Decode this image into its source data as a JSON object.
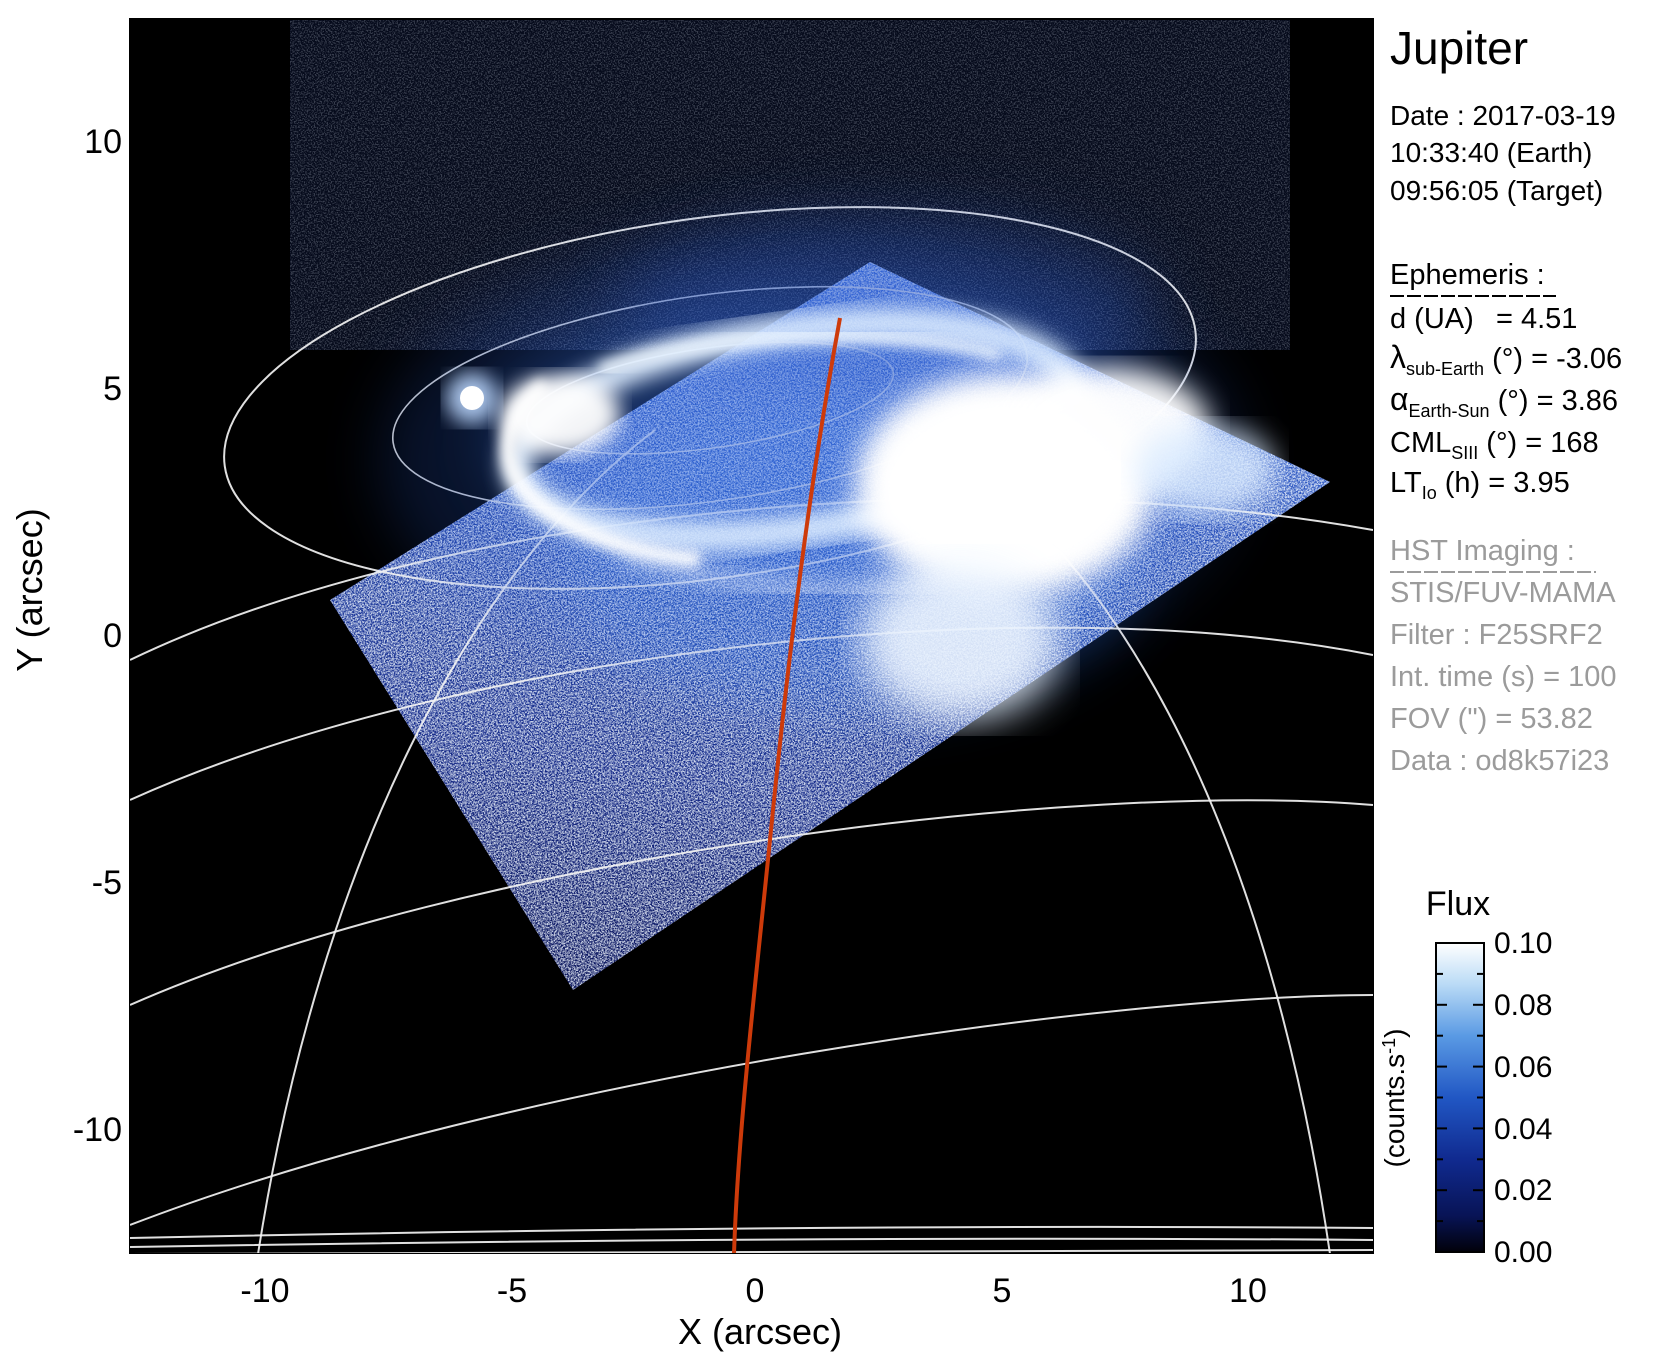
{
  "title": "Jupiter",
  "info": {
    "date": "Date : 2017-03-19",
    "time_earth": "10:33:40 (Earth)",
    "time_target": "09:56:05 (Target)"
  },
  "ephemeris": {
    "heading": "Ephemeris :",
    "d_label": "d (UA)",
    "d_value": "= 4.51",
    "lambda_sym": "λ",
    "lambda_sub": "sub-Earth",
    "lambda_rest": " (°) = -3.06",
    "alpha_sym": "α",
    "alpha_sub": "Earth-Sun",
    "alpha_rest": " (°) = 3.86",
    "cml_sym": "CML",
    "cml_sub": "SIII",
    "cml_rest": " (°) = 168",
    "lt_sym": "LT",
    "lt_sub": "Io",
    "lt_rest": " (h) = 3.95"
  },
  "hst": {
    "heading": "HST Imaging :",
    "instrument": "STIS/FUV-MAMA",
    "filter": "Filter : F25SRF2",
    "int_time": "Int. time (s) = 100",
    "fov": "FOV (\") = 53.82",
    "data_id": "Data : od8k57i23"
  },
  "axes": {
    "x_label": "X (arcsec)",
    "y_label": "Y (arcsec)",
    "x_ticks": [
      "-10",
      "-5",
      "0",
      "5",
      "10"
    ],
    "y_ticks": [
      "10",
      "5",
      "0",
      "-5",
      "-10"
    ]
  },
  "colorbar": {
    "title": "Flux",
    "unit_pre": "(counts.s",
    "unit_sup": "-1",
    "unit_post": ")",
    "ticks": [
      "0.10",
      "0.08",
      "0.06",
      "0.04",
      "0.02",
      "0.00"
    ]
  },
  "colors": {
    "background": "#000000",
    "grid": "#f3f3f3",
    "cml_line": "#cd3a0a",
    "aurora_core": "#ffffff",
    "image_blue": "#1b3a9e",
    "panel_gray": "#9b9b9b"
  },
  "chart_data": {
    "type": "heatmap",
    "title": "Jupiter",
    "xlabel": "X (arcsec)",
    "ylabel": "Y (arcsec)",
    "xlim": [
      -12.6,
      12.6
    ],
    "ylim": [
      -12.5,
      12.5
    ],
    "x_ticks": [
      -10,
      -5,
      0,
      5,
      10
    ],
    "y_ticks": [
      10,
      5,
      0,
      -5,
      -10
    ],
    "grid": "planetary lat-lon wireframe in white over full disk",
    "colorbar": {
      "label": "Flux (counts.s-1)",
      "range": [
        0.0,
        0.1
      ],
      "ticks": [
        0.0,
        0.02,
        0.04,
        0.06,
        0.08,
        0.1
      ],
      "colormap": "black -> dark blue -> blue -> light blue -> white"
    },
    "features": [
      {
        "name": "auroral-oval",
        "desc": "bright FUV auroral oval ring",
        "x_arcsec": [
          -5.0,
          7.0
        ],
        "y_arcsec": [
          3.0,
          6.5
        ],
        "peak_flux": 0.1
      },
      {
        "name": "bright-blob",
        "desc": "saturated white emission region right of center",
        "x_arcsec": [
          1.0,
          5.5
        ],
        "y_arcsec": [
          2.5,
          5.5
        ]
      },
      {
        "name": "footprint-dot",
        "desc": "isolated bright spot (satellite footprint)",
        "x_arcsec": -5.8,
        "y_arcsec": 4.8
      },
      {
        "name": "stis-fov",
        "desc": "rotated square STIS detector field filled with blue noise",
        "corners_arcsec": [
          [
            -8.6,
            0.7
          ],
          [
            2.3,
            7.6
          ],
          [
            11.7,
            3.1
          ],
          [
            -3.7,
            -7.2
          ]
        ],
        "mean_flux": 0.03
      },
      {
        "name": "cml-meridian",
        "desc": "red central meridian line",
        "x_top_arcsec": 1.7,
        "y_top_arcsec": 6.4,
        "x_bottom_arcsec": -0.45,
        "y_bottom_arcsec": -12.5
      }
    ],
    "legend_position": "colorbar right side"
  }
}
